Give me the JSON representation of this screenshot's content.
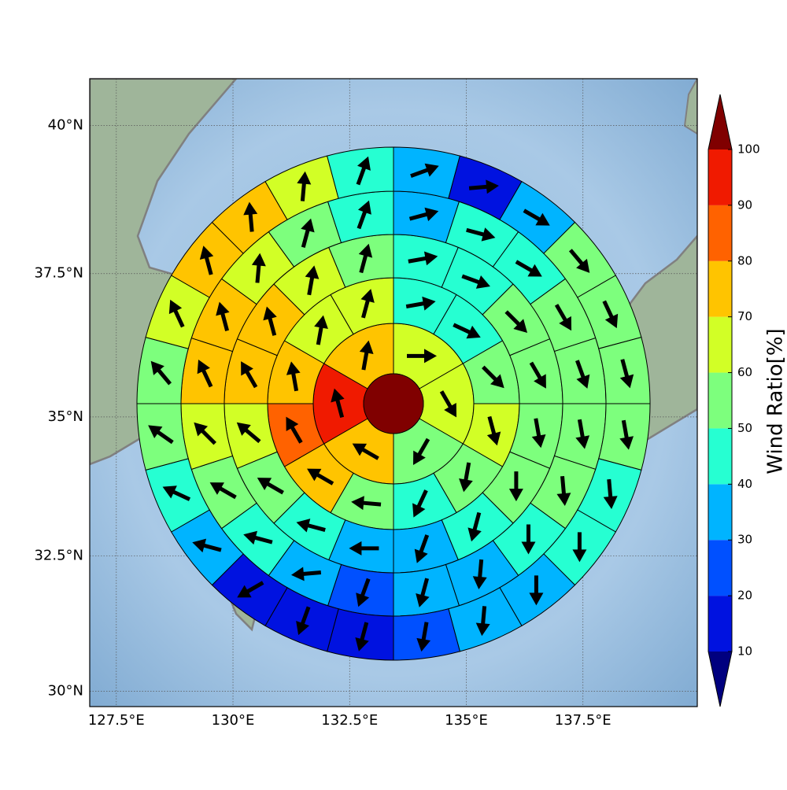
{
  "chart_data": {
    "type": "polar-sector-map",
    "xlim": [
      126.93,
      139.95
    ],
    "ylim": [
      29.71,
      40.77
    ],
    "xticks": [
      {
        "value": 127.5,
        "label": "127.5°E"
      },
      {
        "value": 130,
        "label": "130°E"
      },
      {
        "value": 132.5,
        "label": "132.5°E"
      },
      {
        "value": 135,
        "label": "135°E"
      },
      {
        "value": 137.5,
        "label": "137.5°E"
      }
    ],
    "yticks": [
      {
        "value": 30,
        "label": "30°N"
      },
      {
        "value": 32.5,
        "label": "32.5°N"
      },
      {
        "value": 35,
        "label": "35°N"
      },
      {
        "value": 37.5,
        "label": "37.5°N"
      },
      {
        "value": 40,
        "label": "40°N"
      }
    ],
    "grid": true,
    "center": {
      "value": 100
    },
    "rings": [
      {
        "values": [
          65,
          65,
          55,
          75,
          95,
          75
        ],
        "directions": [
          90,
          150,
          210,
          300,
          345,
          10
        ]
      },
      {
        "values": [
          45,
          45,
          55,
          65,
          55,
          45,
          55,
          75,
          85,
          75,
          65,
          65
        ],
        "directions": [
          80,
          115,
          135,
          165,
          190,
          205,
          275,
          300,
          330,
          350,
          10,
          15
        ]
      },
      {
        "values": [
          45,
          45,
          55,
          55,
          55,
          55,
          45,
          35,
          35,
          45,
          55,
          65,
          75,
          75,
          65,
          55
        ],
        "directions": [
          80,
          110,
          135,
          150,
          170,
          180,
          195,
          200,
          270,
          285,
          300,
          310,
          330,
          345,
          10,
          15
        ]
      },
      {
        "values": [
          35,
          45,
          45,
          55,
          55,
          55,
          55,
          45,
          35,
          35,
          25,
          35,
          45,
          55,
          65,
          75,
          75,
          65,
          55,
          45
        ],
        "directions": [
          75,
          105,
          120,
          150,
          160,
          170,
          175,
          180,
          185,
          195,
          200,
          265,
          285,
          300,
          315,
          335,
          345,
          5,
          15,
          20
        ]
      },
      {
        "values": [
          35,
          15,
          35,
          55,
          55,
          55,
          55,
          45,
          45,
          35,
          35,
          25,
          15,
          15,
          15,
          35,
          45,
          55,
          55,
          65,
          75,
          75,
          65,
          45
        ],
        "directions": [
          70,
          85,
          120,
          140,
          155,
          165,
          170,
          175,
          180,
          180,
          185,
          190,
          195,
          200,
          240,
          285,
          295,
          305,
          320,
          335,
          345,
          355,
          5,
          20
        ]
      }
    ],
    "colorbar": {
      "label": "Wind Ratio[%]",
      "levels": [
        10,
        20,
        30,
        40,
        50,
        60,
        70,
        80,
        90,
        100
      ],
      "colors": [
        "#0012e0",
        "#0050ff",
        "#00b4ff",
        "#26ffd2",
        "#7dff7d",
        "#d2ff26",
        "#ffc400",
        "#ff6200",
        "#f01a00"
      ],
      "under_color": "#00007f",
      "over_color": "#800000"
    }
  }
}
